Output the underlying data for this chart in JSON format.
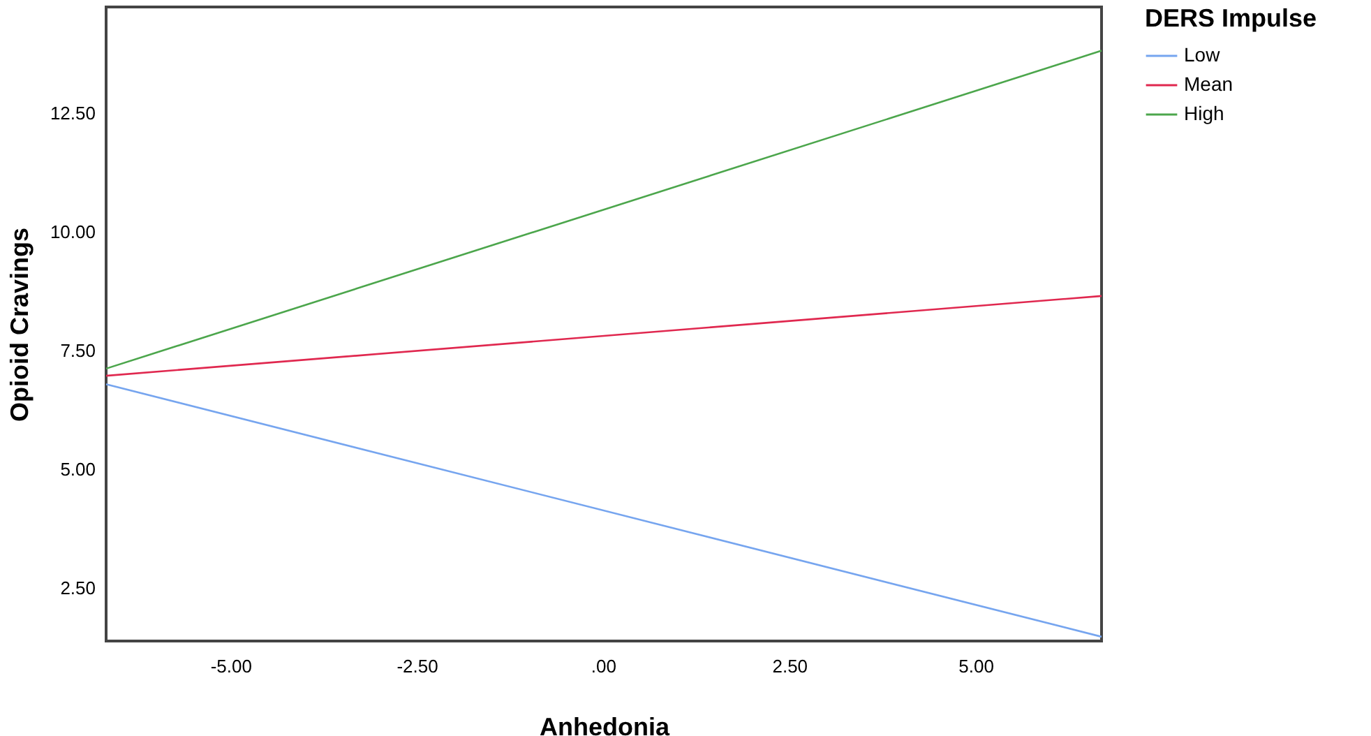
{
  "chart_data": {
    "type": "line",
    "xlabel": "Anhedonia",
    "ylabel": "Opioid Cravings",
    "legend_title": "DERS Impulse",
    "legend": "right",
    "grid": false,
    "line_style": "solid",
    "marker": "none",
    "xlim": [
      -6.67,
      6.69
    ],
    "ylim": [
      1.38,
      14.74
    ],
    "xticks": [
      {
        "value": -5,
        "label": "-5.00"
      },
      {
        "value": -2.5,
        "label": "-2.50"
      },
      {
        "value": 0,
        "label": ".00"
      },
      {
        "value": 2.5,
        "label": "2.50"
      },
      {
        "value": 5,
        "label": "5.00"
      }
    ],
    "yticks": [
      {
        "value": 2.5,
        "label": "2.50"
      },
      {
        "value": 5,
        "label": "5.00"
      },
      {
        "value": 7.5,
        "label": "7.50"
      },
      {
        "value": 10,
        "label": "10.00"
      },
      {
        "value": 12.5,
        "label": "12.50"
      }
    ],
    "x": [
      -6.67,
      6.69
    ],
    "series": [
      {
        "name": "Low",
        "color": "#76a5ef",
        "values": [
          6.79,
          1.47
        ]
      },
      {
        "name": "Mean",
        "color": "#e0284f",
        "values": [
          6.97,
          8.65
        ]
      },
      {
        "name": "High",
        "color": "#4ca64c",
        "values": [
          7.12,
          13.82
        ]
      }
    ]
  }
}
